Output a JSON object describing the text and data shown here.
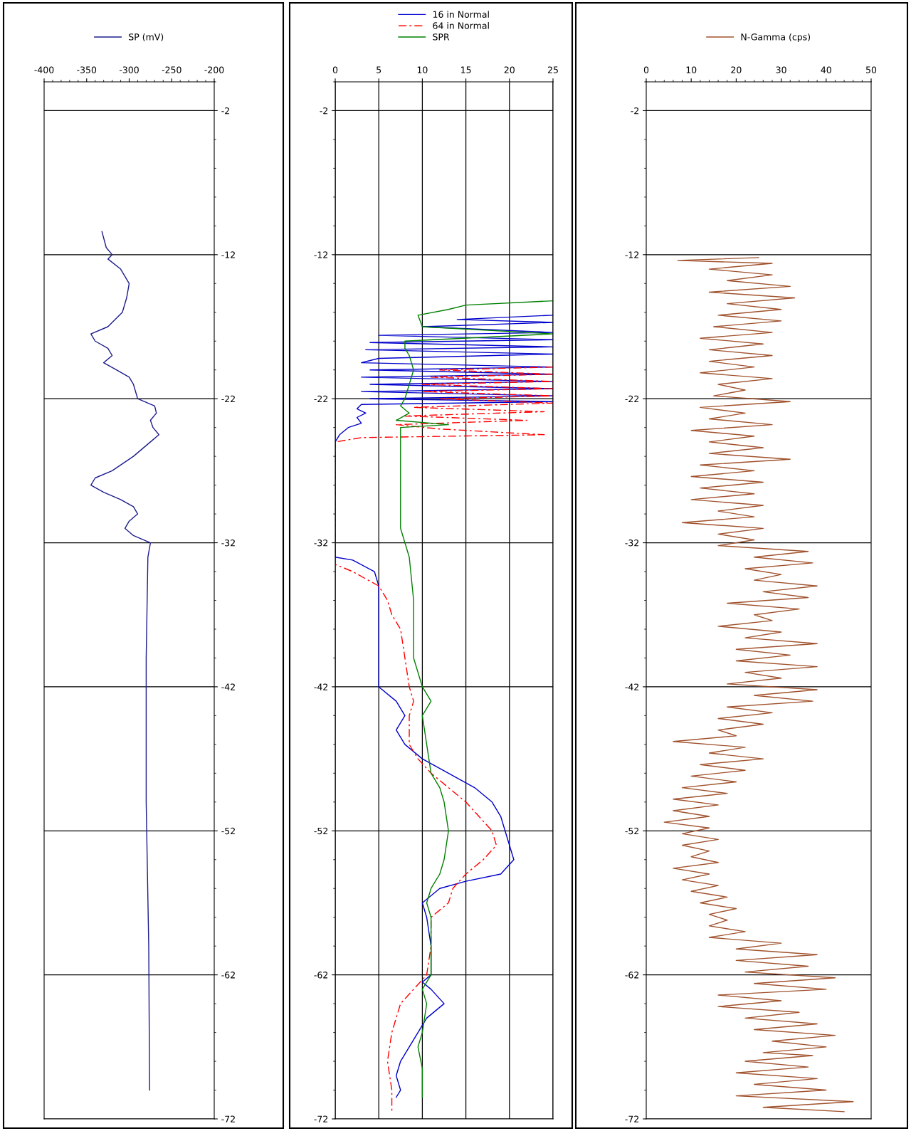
{
  "chart_data": [
    {
      "type": "line",
      "xlim": [
        -400,
        -200
      ],
      "xticks": [
        -400,
        -350,
        -300,
        -250,
        -200
      ],
      "ylim": [
        -72,
        0
      ],
      "yticks": [
        -2,
        -12,
        -22,
        -32,
        -42,
        -52,
        -62,
        -72
      ],
      "grid": "y",
      "legend": "top",
      "series": [
        {
          "name": "SP (mV)",
          "color": "#1c1c8c",
          "x": [
            -332,
            -327,
            -320,
            -325,
            -310,
            -300,
            -303,
            -308,
            -325,
            -345,
            -340,
            -325,
            -320,
            -330,
            -315,
            -300,
            -295,
            -290,
            -270,
            -268,
            -275,
            -272,
            -265,
            -275,
            -295,
            -320,
            -340,
            -345,
            -330,
            -310,
            -295,
            -290,
            -300,
            -305,
            -295,
            -275,
            -278,
            -280,
            -280,
            -277,
            -276
          ],
          "values": [
            -10.4,
            -11.5,
            -12,
            -12.3,
            -13,
            -14,
            -15,
            -16,
            -17,
            -17.5,
            -18,
            -18.5,
            -19,
            -19.5,
            -20,
            -20.5,
            -21,
            -22,
            -22.5,
            -23,
            -23.5,
            -24,
            -24.5,
            -25,
            -26,
            -27,
            -27.5,
            -28,
            -28.5,
            -29,
            -29.5,
            -30,
            -30.5,
            -31,
            -31.5,
            -32,
            -33,
            -40,
            -50,
            -60,
            -70
          ]
        }
      ]
    },
    {
      "type": "line",
      "xlim": [
        0,
        25
      ],
      "xticks": [
        0,
        5,
        10,
        15,
        20,
        25
      ],
      "ylim": [
        -72,
        0
      ],
      "yticks": [
        -2,
        -12,
        -22,
        -32,
        -42,
        -52,
        -62,
        -72
      ],
      "grid": true,
      "legend": "top",
      "series": [
        {
          "name": "16 in Normal",
          "color": "#0000cc",
          "line_style": "solid",
          "x": [
            25,
            14,
            25,
            10,
            25,
            5,
            25,
            4,
            25,
            3.5,
            25,
            5,
            3,
            25,
            4,
            25,
            3,
            25,
            4,
            25,
            3,
            25,
            4,
            25,
            3,
            2.5,
            3.5,
            2.5,
            3,
            1.5,
            0.5,
            0,
            0,
            2,
            4.5,
            5,
            5,
            7,
            8,
            7,
            8,
            10,
            13,
            16,
            18,
            19,
            19.5,
            20,
            20.5,
            19,
            15,
            12,
            10,
            10.5,
            11,
            11,
            10,
            11,
            12.5,
            10.5,
            9.5,
            8.5,
            7.5,
            7,
            7.5,
            7
          ],
          "values": [
            -16.2,
            -16.5,
            -16.7,
            -17,
            -17.4,
            -17.6,
            -17.9,
            -18.1,
            -18.4,
            -18.6,
            -18.9,
            -19.2,
            -19.5,
            -19.8,
            -20,
            -20.3,
            -20.5,
            -20.8,
            -21,
            -21.3,
            -21.5,
            -21.8,
            -22,
            -22.2,
            -22.4,
            -22.7,
            -23,
            -23.3,
            -23.7,
            -24,
            -24.5,
            -25,
            -33,
            -33.2,
            -34,
            -35,
            -42,
            -43,
            -44,
            -45,
            -46,
            -47,
            -48,
            -49,
            -50,
            -51,
            -52,
            -53,
            -54,
            -55,
            -55.5,
            -56,
            -57,
            -58,
            -60,
            -62,
            -62.5,
            -63,
            -64,
            -65,
            -66,
            -67,
            -68,
            -69,
            -70,
            -70.5
          ]
        },
        {
          "name": "64 in Normal",
          "color": "#ff0000",
          "line_style": "dashed",
          "x": [
            25,
            12,
            25,
            11,
            25,
            10,
            25,
            10,
            25,
            12,
            25,
            9,
            24,
            8,
            22,
            7,
            12,
            24,
            3,
            0,
            0,
            2,
            5,
            6,
            6.5,
            7.5,
            8,
            8.5,
            9,
            8.5,
            8.5,
            9.5,
            11,
            13,
            15,
            16.5,
            18,
            18.5,
            17,
            15,
            13.5,
            13,
            11,
            11,
            10.5,
            9,
            7.5,
            7,
            6.5,
            6,
            6.5,
            6.5,
            6.5
          ],
          "values": [
            -19.8,
            -20,
            -20.3,
            -20.5,
            -20.8,
            -21,
            -21.3,
            -21.5,
            -21.8,
            -22,
            -22.3,
            -22.6,
            -22.9,
            -23.2,
            -23.5,
            -23.8,
            -24.1,
            -24.5,
            -24.7,
            -25,
            -33.5,
            -34,
            -35,
            -36,
            -37,
            -38,
            -40,
            -42,
            -43,
            -44,
            -46,
            -47,
            -48,
            -49,
            -50,
            -51,
            -52,
            -53,
            -54,
            -55,
            -56,
            -57,
            -58,
            -60,
            -62,
            -63,
            -64,
            -65,
            -66,
            -68,
            -70,
            -71,
            -71.5
          ]
        },
        {
          "name": "SPR",
          "color": "#008000",
          "line_style": "solid",
          "x": [
            25,
            15,
            13,
            9.5,
            10,
            25,
            8,
            8,
            8.5,
            9,
            8.5,
            8,
            7.5,
            8.5,
            7,
            13,
            7.5,
            7.5,
            7.5,
            7.5,
            8.5,
            9,
            9,
            10,
            11,
            10,
            10.5,
            11,
            12,
            12.5,
            13,
            12.5,
            12,
            11,
            10.5,
            11,
            11,
            11,
            10,
            10.5,
            10,
            9.5,
            10,
            10,
            10
          ],
          "values": [
            -15.2,
            -15.5,
            -15.8,
            -16.2,
            -17,
            -17.5,
            -18,
            -18.5,
            -19,
            -20,
            -21,
            -22,
            -22.5,
            -23,
            -23.5,
            -23.8,
            -24,
            -25,
            -28,
            -31,
            -33,
            -36,
            -40,
            -42,
            -43,
            -44,
            -46,
            -48,
            -49,
            -50,
            -52,
            -54,
            -55,
            -56,
            -57,
            -58,
            -60,
            -62,
            -63,
            -64,
            -66,
            -67,
            -68.5,
            -70,
            -70.5
          ]
        }
      ]
    },
    {
      "type": "line",
      "xlim": [
        0,
        50
      ],
      "xticks": [
        0,
        10,
        20,
        30,
        40,
        50
      ],
      "ylim": [
        -72,
        0
      ],
      "yticks": [
        -2,
        -12,
        -22,
        -32,
        -42,
        -52,
        -62,
        -72
      ],
      "grid": "y",
      "legend": "top",
      "series": [
        {
          "name": "N-Gamma (cps)",
          "color": "#a0522d",
          "x": [
            25,
            7,
            28,
            14,
            28,
            18,
            32,
            14,
            33,
            18,
            30,
            16,
            30,
            15,
            28,
            12,
            26,
            14,
            28,
            14,
            24,
            12,
            28,
            16,
            22,
            15,
            32,
            12,
            22,
            14,
            28,
            10,
            24,
            14,
            26,
            14,
            32,
            12,
            24,
            10,
            26,
            12,
            24,
            10,
            26,
            16,
            24,
            8,
            26,
            16,
            24,
            16,
            36,
            24,
            37,
            22,
            30,
            24,
            38,
            26,
            36,
            18,
            34,
            24,
            28,
            16,
            30,
            22,
            38,
            20,
            32,
            20,
            38,
            22,
            30,
            18,
            38,
            24,
            37,
            18,
            28,
            16,
            26,
            16,
            20,
            6,
            22,
            14,
            26,
            12,
            22,
            10,
            20,
            8,
            18,
            6,
            16,
            6,
            14,
            4,
            14,
            8,
            16,
            8,
            14,
            10,
            16,
            6,
            14,
            8,
            16,
            10,
            18,
            12,
            20,
            14,
            18,
            14,
            22,
            14,
            30,
            20,
            38,
            20,
            36,
            22,
            42,
            24,
            40,
            16,
            30,
            16,
            34,
            22,
            38,
            24,
            42,
            28,
            40,
            26,
            37,
            22,
            36,
            20,
            38,
            24,
            40,
            20,
            46,
            26,
            44
          ],
          "values": [
            -12.2,
            -12.4,
            -12.6,
            -13,
            -13.4,
            -13.8,
            -14.2,
            -14.6,
            -15,
            -15.4,
            -15.8,
            -16.2,
            -16.6,
            -17,
            -17.4,
            -17.8,
            -18.2,
            -18.6,
            -19,
            -19.4,
            -19.8,
            -20.2,
            -20.6,
            -21,
            -21.4,
            -21.8,
            -22.2,
            -22.6,
            -23,
            -23.4,
            -23.8,
            -24.2,
            -24.6,
            -25,
            -25.4,
            -25.8,
            -26.2,
            -26.6,
            -27,
            -27.4,
            -27.8,
            -28.2,
            -28.6,
            -29,
            -29.4,
            -29.8,
            -30.2,
            -30.6,
            -31,
            -31.4,
            -31.8,
            -32.2,
            -32.6,
            -33,
            -33.4,
            -33.8,
            -34.2,
            -34.6,
            -35,
            -35.4,
            -35.8,
            -36.2,
            -36.6,
            -37,
            -37.4,
            -37.8,
            -38.2,
            -38.6,
            -39,
            -39.4,
            -39.8,
            -40.2,
            -40.6,
            -41,
            -41.4,
            -41.8,
            -42.2,
            -42.6,
            -43,
            -43.4,
            -43.8,
            -44.2,
            -44.6,
            -45,
            -45.4,
            -45.8,
            -46.2,
            -46.6,
            -47,
            -47.4,
            -47.8,
            -48.2,
            -48.6,
            -49,
            -49.4,
            -49.8,
            -50.2,
            -50.6,
            -51,
            -51.4,
            -51.8,
            -52.2,
            -52.6,
            -53,
            -53.4,
            -53.8,
            -54.2,
            -54.6,
            -55,
            -55.4,
            -55.8,
            -56.2,
            -56.6,
            -57,
            -57.4,
            -57.8,
            -58.2,
            -58.6,
            -59,
            -59.4,
            -59.8,
            -60.2,
            -60.6,
            -61,
            -61.4,
            -61.8,
            -62.2,
            -62.6,
            -63,
            -63.4,
            -63.8,
            -64.2,
            -64.6,
            -65,
            -65.4,
            -65.8,
            -66.2,
            -66.6,
            -67,
            -67.4,
            -67.6,
            -68,
            -68.4,
            -68.8,
            -69.2,
            -69.6,
            -70,
            -70.4,
            -70.8,
            -71.2,
            -71.5
          ]
        }
      ]
    }
  ]
}
